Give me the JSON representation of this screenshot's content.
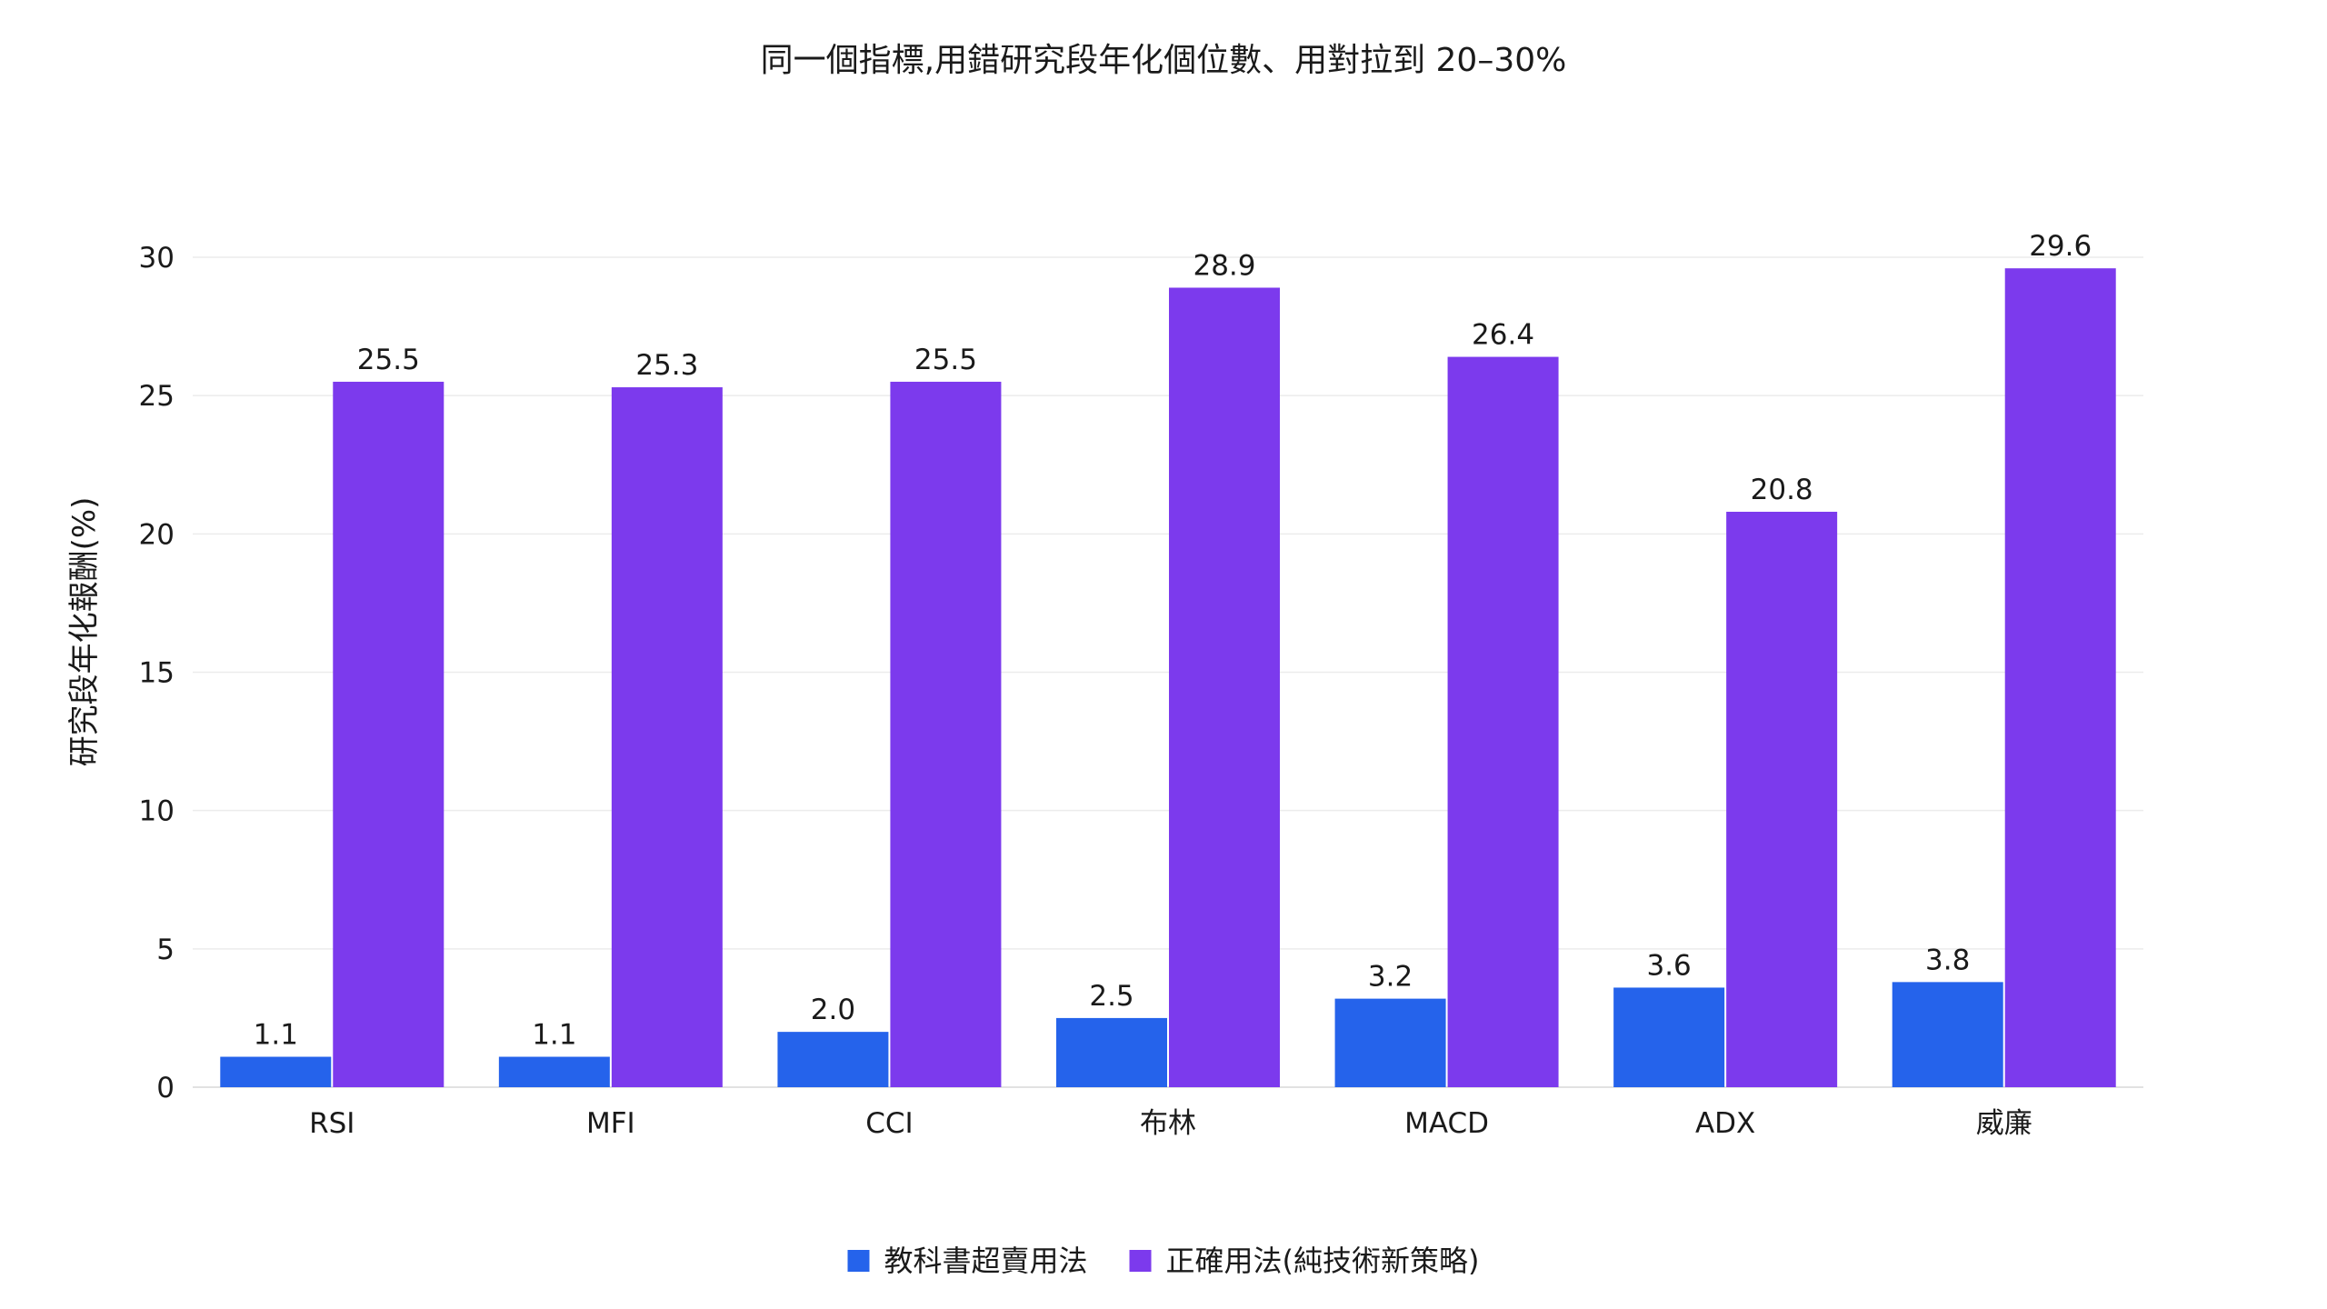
{
  "chart_data": {
    "type": "bar",
    "title": "同一個指標,用錯研究段年化個位數、用對拉到 20–30%",
    "xlabel": "",
    "ylabel": "研究段年化報酬(%)",
    "ylim": [
      0,
      30
    ],
    "yticks": [
      0,
      5,
      10,
      15,
      20,
      25,
      30
    ],
    "grid": true,
    "legend_position": "bottom-center",
    "categories": [
      "RSI",
      "MFI",
      "CCI",
      "布林",
      "MACD",
      "ADX",
      "威廉"
    ],
    "series": [
      {
        "name": "教科書超賣用法",
        "color": "#2563eb",
        "values": [
          1.1,
          1.1,
          2.0,
          2.5,
          3.2,
          3.6,
          3.8
        ],
        "labels": [
          "1.1",
          "1.1",
          "2.0",
          "2.5",
          "3.2",
          "3.6",
          "3.8"
        ]
      },
      {
        "name": "正確用法(純技術新策略)",
        "color": "#7c3aed",
        "values": [
          25.5,
          25.3,
          25.5,
          28.9,
          26.4,
          20.8,
          29.6
        ],
        "labels": [
          "25.5",
          "25.3",
          "25.5",
          "28.9",
          "26.4",
          "20.8",
          "29.6"
        ]
      }
    ]
  }
}
